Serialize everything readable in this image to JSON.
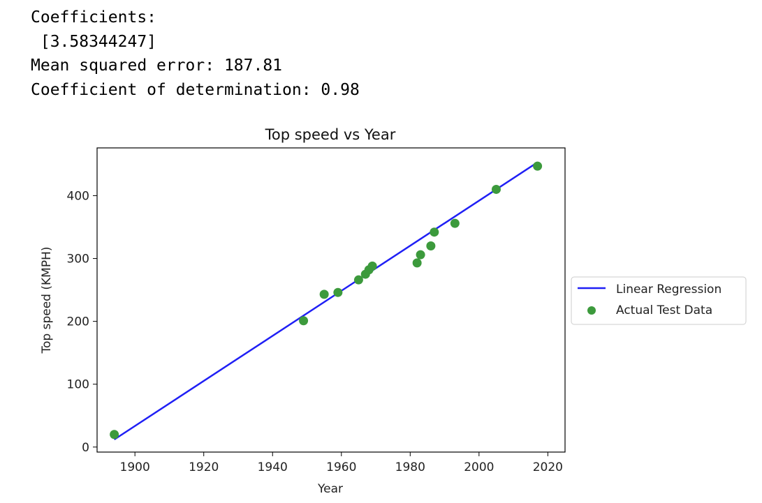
{
  "output": {
    "coef_label": "Coefficients:",
    "coef_value": " [3.58344247]",
    "mse_line": "Mean squared error: 187.81",
    "r2_line": "Coefficient of determination: 0.98"
  },
  "chart_data": {
    "type": "scatter",
    "title": "Top speed vs Year",
    "xlabel": "Year",
    "ylabel": "Top speed (KMPH)",
    "xlim": [
      1889,
      2025
    ],
    "ylim": [
      -8,
      476
    ],
    "xticks": [
      1900,
      1920,
      1940,
      1960,
      1980,
      2000,
      2020
    ],
    "yticks": [
      0,
      100,
      200,
      300,
      400
    ],
    "legend_position": "outside-right",
    "series": [
      {
        "name": "Linear Regression",
        "kind": "line",
        "color": "#1f1ff5",
        "x": [
          1894,
          2017
        ],
        "y": [
          12,
          453
        ]
      },
      {
        "name": "Actual Test Data",
        "kind": "scatter",
        "color": "#3c9a3c",
        "x": [
          1894,
          1949,
          1955,
          1959,
          1965,
          1967,
          1968,
          1969,
          1982,
          1983,
          1986,
          1987,
          1993,
          2005,
          2017
        ],
        "y": [
          20,
          201,
          243,
          246,
          266,
          275,
          282,
          288,
          293,
          306,
          320,
          342,
          356,
          410,
          447
        ]
      }
    ]
  }
}
